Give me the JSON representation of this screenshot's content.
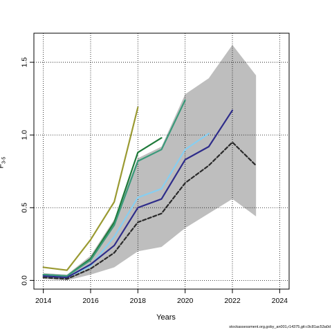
{
  "chart_data": {
    "type": "line",
    "ylabel_main": "F",
    "ylabel_sub": "3-5",
    "xlabel": "Years",
    "xlim": [
      2013.6,
      2024.4
    ],
    "ylim": [
      -0.06,
      1.7
    ],
    "x_ticks": [
      2014,
      2016,
      2018,
      2020,
      2022,
      2024
    ],
    "y_ticks": [
      0.0,
      0.5,
      1.0,
      1.5
    ],
    "grid": true,
    "confidence_band": {
      "x": [
        2014,
        2015,
        2016,
        2017,
        2018,
        2019,
        2020,
        2021,
        2022,
        2023
      ],
      "upper": [
        0.05,
        0.04,
        0.17,
        0.42,
        0.84,
        0.92,
        1.28,
        1.39,
        1.62,
        1.41
      ],
      "lower": [
        0.01,
        0.0,
        0.04,
        0.09,
        0.2,
        0.23,
        0.36,
        0.46,
        0.56,
        0.44
      ],
      "color": "#bebebe"
    },
    "series": [
      {
        "x": [
          2014,
          2015,
          2016,
          2017,
          2018
        ],
        "values": [
          0.09,
          0.07,
          0.28,
          0.54,
          1.19
        ],
        "color": "#9a9a32",
        "dashed": false
      },
      {
        "x": [
          2014,
          2015,
          2016,
          2017,
          2018,
          2019
        ],
        "values": [
          0.04,
          0.03,
          0.15,
          0.4,
          0.88,
          0.98
        ],
        "color": "#1f7a3a",
        "dashed": false
      },
      {
        "x": [
          2014,
          2015,
          2016,
          2017,
          2018,
          2019,
          2020
        ],
        "values": [
          0.04,
          0.03,
          0.14,
          0.38,
          0.82,
          0.9,
          1.24
        ],
        "color": "#3a9a7a",
        "dashed": false
      },
      {
        "x": [
          2014,
          2015,
          2016,
          2017,
          2018,
          2019,
          2020,
          2021
        ],
        "values": [
          0.03,
          0.02,
          0.1,
          0.3,
          0.57,
          0.63,
          0.9,
          1.01
        ],
        "color": "#87cef0",
        "dashed": false
      },
      {
        "x": [
          2014,
          2015,
          2016,
          2017,
          2018,
          2019,
          2020,
          2021,
          2022
        ],
        "values": [
          0.03,
          0.02,
          0.11,
          0.24,
          0.5,
          0.56,
          0.83,
          0.92,
          1.17
        ],
        "color": "#2e2c8a",
        "dashed": false
      },
      {
        "x": [
          2014,
          2015,
          2016,
          2017,
          2018,
          2019,
          2020,
          2021,
          2022,
          2023
        ],
        "values": [
          0.02,
          0.01,
          0.08,
          0.19,
          0.4,
          0.46,
          0.67,
          0.79,
          0.95,
          0.79
        ],
        "color": "#2a2a2a",
        "dashed": true
      }
    ]
  },
  "footer": "stockassessment.org,goby_an001,r14375,git:c9c81ac53a0d"
}
